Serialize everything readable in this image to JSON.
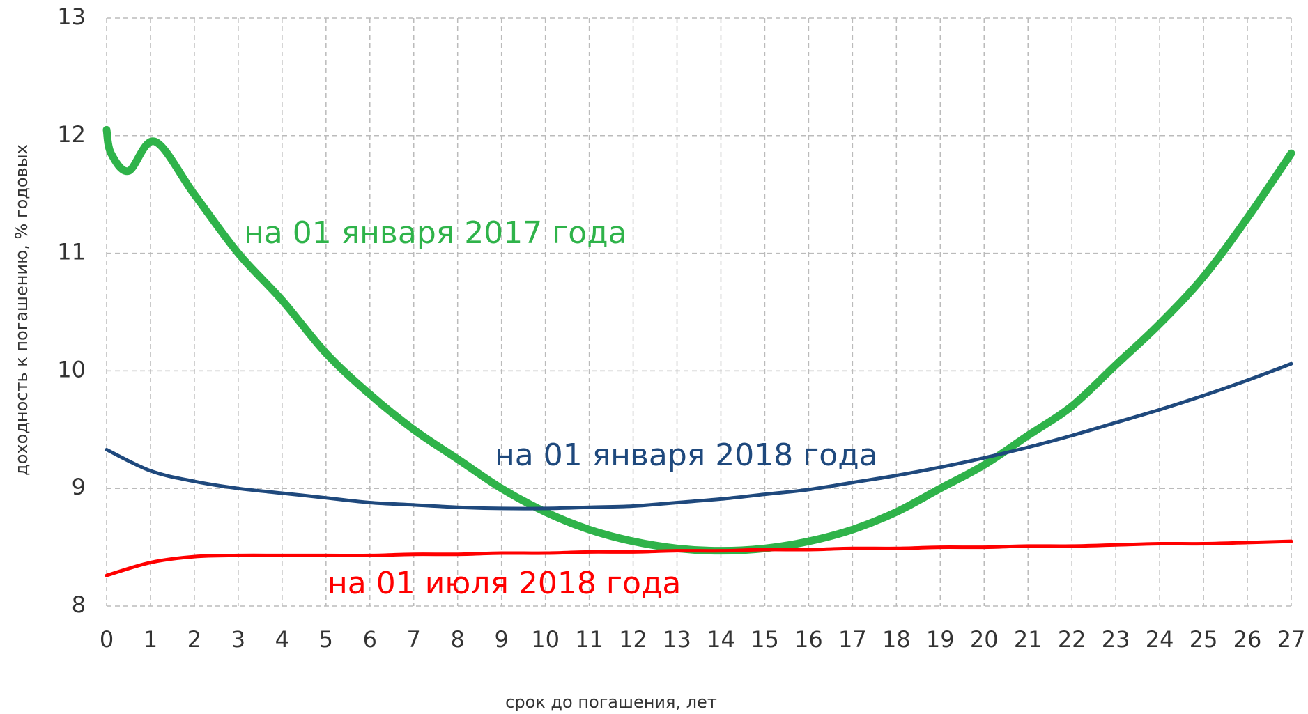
{
  "chart_data": {
    "type": "line",
    "x_label": "срок до погашения, лет",
    "y_label": "доходность к погашению, % годовых",
    "xlim": [
      0,
      27
    ],
    "xticks": [
      0,
      1,
      2,
      3,
      4,
      5,
      6,
      7,
      8,
      9,
      10,
      11,
      12,
      13,
      14,
      15,
      16,
      17,
      18,
      19,
      20,
      21,
      22,
      23,
      24,
      25,
      26,
      27
    ],
    "ylim": [
      8,
      13
    ],
    "yticks": [
      8,
      9,
      10,
      11,
      12,
      13
    ],
    "grid": true,
    "series": [
      {
        "name": "на 01 января 2017 года",
        "color": "#2fb34a",
        "x": [
          0,
          0.1,
          0.5,
          1.1,
          2,
          3,
          4,
          5,
          6,
          7,
          8,
          9,
          10,
          11,
          12,
          13,
          14,
          15,
          16,
          17,
          18,
          19,
          20,
          21,
          22,
          23,
          24,
          25,
          26,
          27
        ],
        "values": [
          12.05,
          11.85,
          11.7,
          11.95,
          11.5,
          11.0,
          10.6,
          10.15,
          9.8,
          9.5,
          9.25,
          9.0,
          8.8,
          8.65,
          8.55,
          8.49,
          8.47,
          8.49,
          8.55,
          8.65,
          8.8,
          9.0,
          9.2,
          9.45,
          9.7,
          10.05,
          10.4,
          10.8,
          11.3,
          11.85
        ]
      },
      {
        "name": "на 01 января 2018 года",
        "color": "#1f497d",
        "x": [
          0,
          1,
          2,
          3,
          4,
          5,
          6,
          7,
          8,
          9,
          10,
          11,
          12,
          13,
          14,
          15,
          16,
          17,
          18,
          19,
          20,
          21,
          22,
          23,
          24,
          25,
          26,
          27
        ],
        "values": [
          9.33,
          9.15,
          9.06,
          9.0,
          8.96,
          8.92,
          8.88,
          8.86,
          8.84,
          8.83,
          8.83,
          8.84,
          8.85,
          8.88,
          8.91,
          8.95,
          8.99,
          9.05,
          9.11,
          9.18,
          9.26,
          9.35,
          9.45,
          9.56,
          9.67,
          9.79,
          9.92,
          10.06
        ]
      },
      {
        "name": "на 01 июля 2018 года",
        "color": "#ff0000",
        "x": [
          0,
          1,
          2,
          3,
          4,
          5,
          6,
          7,
          8,
          9,
          10,
          11,
          12,
          13,
          14,
          15,
          16,
          17,
          18,
          19,
          20,
          21,
          22,
          23,
          24,
          25,
          26,
          27
        ],
        "values": [
          8.26,
          8.37,
          8.42,
          8.43,
          8.43,
          8.43,
          8.43,
          8.44,
          8.44,
          8.45,
          8.45,
          8.46,
          8.46,
          8.47,
          8.47,
          8.48,
          8.48,
          8.49,
          8.49,
          8.5,
          8.5,
          8.51,
          8.51,
          8.52,
          8.53,
          8.53,
          8.54,
          8.55
        ]
      }
    ]
  }
}
